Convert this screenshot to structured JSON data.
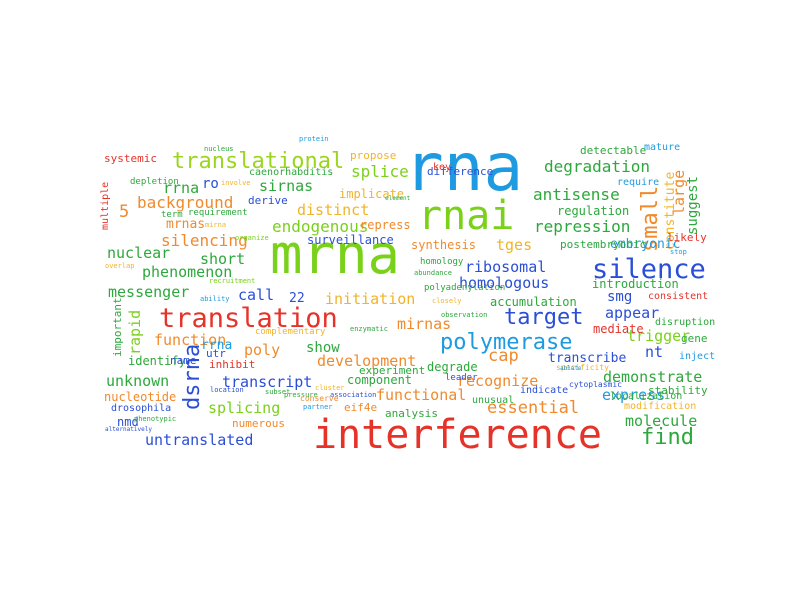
{
  "words": [
    {
      "text": "rna",
      "color": "#1e9be0"
    },
    {
      "text": "mrna",
      "color": "#7ad11a"
    },
    {
      "text": "interference",
      "color": "#e5332a"
    },
    {
      "text": "rnai",
      "color": "#7ad11a"
    },
    {
      "text": "translation",
      "color": "#e5332a"
    },
    {
      "text": "silence",
      "color": "#2a4fd6"
    },
    {
      "text": "translational",
      "color": "#9bd61e"
    },
    {
      "text": "polymerase",
      "color": "#1e9be0"
    },
    {
      "text": "target",
      "color": "#2a4fd6"
    },
    {
      "text": "dsrna",
      "color": "#2a4fd6"
    },
    {
      "text": "small",
      "color": "#f08a2c"
    },
    {
      "text": "find",
      "color": "#2da83c"
    },
    {
      "text": "essential",
      "color": "#f08a2c"
    },
    {
      "text": "degradation",
      "color": "#2da83c"
    },
    {
      "text": "antisense",
      "color": "#2da83c"
    },
    {
      "text": "repression",
      "color": "#2da83c"
    },
    {
      "text": "endogenous",
      "color": "#7ad11a"
    },
    {
      "text": "background",
      "color": "#f08a2c"
    },
    {
      "text": "silencing",
      "color": "#f08a2c"
    },
    {
      "text": "distinct",
      "color": "#f0b429"
    },
    {
      "text": "cap",
      "color": "#f08a2c"
    },
    {
      "text": "splice",
      "color": "#7ad11a"
    },
    {
      "text": "rrna",
      "color": "#2da83c"
    },
    {
      "text": "sirnas",
      "color": "#2da83c"
    },
    {
      "text": "phenomenon",
      "color": "#2da83c"
    },
    {
      "text": "nuclear",
      "color": "#2da83c"
    },
    {
      "text": "short",
      "color": "#2da83c"
    },
    {
      "text": "messenger",
      "color": "#2da83c"
    },
    {
      "text": "ribosomal",
      "color": "#2a4fd6"
    },
    {
      "text": "homologous",
      "color": "#2a4fd6"
    },
    {
      "text": "initiation",
      "color": "#f0b429"
    },
    {
      "text": "function",
      "color": "#f08a2c"
    },
    {
      "text": "development",
      "color": "#f08a2c"
    },
    {
      "text": "recognize",
      "color": "#f08a2c"
    },
    {
      "text": "splicing",
      "color": "#7ad11a"
    },
    {
      "text": "transcript",
      "color": "#2a4fd6"
    },
    {
      "text": "untranslated",
      "color": "#2a4fd6"
    },
    {
      "text": "functional",
      "color": "#f08a2c"
    },
    {
      "text": "demonstrate",
      "color": "#2da83c"
    },
    {
      "text": "express",
      "color": "#1e9be0"
    },
    {
      "text": "molecule",
      "color": "#2da83c"
    },
    {
      "text": "trigger",
      "color": "#7ad11a"
    },
    {
      "text": "appear",
      "color": "#2a4fd6"
    },
    {
      "text": "large",
      "color": "#f08a2c"
    },
    {
      "text": "constitute",
      "color": "#f0b429"
    },
    {
      "text": "suggest",
      "color": "#2da83c"
    },
    {
      "text": "embryonic",
      "color": "#1e9be0"
    },
    {
      "text": "mirnas",
      "color": "#f08a2c"
    },
    {
      "text": "mrnas",
      "color": "#f08a2c"
    },
    {
      "text": "tges",
      "color": "#f0b429"
    },
    {
      "text": "poly",
      "color": "#f08a2c"
    },
    {
      "text": "call",
      "color": "#2a4fd6"
    },
    {
      "text": "show",
      "color": "#2da83c"
    },
    {
      "text": "unknown",
      "color": "#2da83c"
    },
    {
      "text": "rapid",
      "color": "#7ad11a"
    },
    {
      "text": "rrna",
      "color": "#1e9be0"
    },
    {
      "text": "ro",
      "color": "#2a4fd6"
    },
    {
      "text": "5",
      "color": "#f08a2c"
    },
    {
      "text": "22",
      "color": "#2a4fd6"
    },
    {
      "text": "nt",
      "color": "#2a4fd6"
    },
    {
      "text": "smg",
      "color": "#2a4fd6"
    },
    {
      "text": "transcribe",
      "color": "#2a4fd6"
    },
    {
      "text": "regulation",
      "color": "#2da83c"
    },
    {
      "text": "accumulation",
      "color": "#2da83c"
    },
    {
      "text": "introduction",
      "color": "#2da83c"
    },
    {
      "text": "synthesis",
      "color": "#f08a2c"
    },
    {
      "text": "surveillance",
      "color": "#2a4fd6"
    },
    {
      "text": "repress",
      "color": "#f08a2c"
    },
    {
      "text": "implicate",
      "color": "#f0b429"
    },
    {
      "text": "component",
      "color": "#2da83c"
    },
    {
      "text": "experiment",
      "color": "#2da83c"
    },
    {
      "text": "degrade",
      "color": "#2da83c"
    },
    {
      "text": "mediate",
      "color": "#e5332a"
    },
    {
      "text": "identify",
      "color": "#2da83c"
    },
    {
      "text": "nucleotide",
      "color": "#f08a2c"
    },
    {
      "text": "nmd",
      "color": "#2a4fd6"
    },
    {
      "text": "numerous",
      "color": "#f08a2c"
    },
    {
      "text": "important",
      "color": "#2da83c"
    },
    {
      "text": "inhibit",
      "color": "#e5332a"
    },
    {
      "text": "utr",
      "color": "#2a4fd6"
    },
    {
      "text": "name",
      "color": "#2a4fd6"
    },
    {
      "text": "eif4e",
      "color": "#f08a2c"
    },
    {
      "text": "analysis",
      "color": "#2da83c"
    },
    {
      "text": "stability",
      "color": "#2da83c"
    },
    {
      "text": "gene",
      "color": "#2da83c"
    },
    {
      "text": "inject",
      "color": "#1e9be0"
    },
    {
      "text": "likely",
      "color": "#e5332a"
    },
    {
      "text": "systemic",
      "color": "#e5332a"
    },
    {
      "text": "propose",
      "color": "#f0b429"
    },
    {
      "text": "detectable",
      "color": "#2da83c"
    },
    {
      "text": "mature",
      "color": "#1e9be0"
    },
    {
      "text": "difference",
      "color": "#2a4fd6"
    },
    {
      "text": "caenorhabditis",
      "color": "#2da83c"
    },
    {
      "text": "postembryonic",
      "color": "#2da83c"
    },
    {
      "text": "consistent",
      "color": "#e5332a"
    },
    {
      "text": "disruption",
      "color": "#2da83c"
    },
    {
      "text": "localization",
      "color": "#2da83c"
    },
    {
      "text": "drosophila",
      "color": "#2a4fd6"
    },
    {
      "text": "modification",
      "color": "#f0b429"
    },
    {
      "text": "unusual",
      "color": "#2da83c"
    },
    {
      "text": "indicate",
      "color": "#2a4fd6"
    },
    {
      "text": "key",
      "color": "#e5332a"
    },
    {
      "text": "require",
      "color": "#1e9be0"
    },
    {
      "text": "depletion",
      "color": "#2da83c"
    },
    {
      "text": "derive",
      "color": "#2a4fd6"
    },
    {
      "text": "requirement",
      "color": "#2da83c"
    },
    {
      "text": "multiple",
      "color": "#e5332a"
    },
    {
      "text": "complementary",
      "color": "#f0b429"
    },
    {
      "text": "homology",
      "color": "#2da83c"
    },
    {
      "text": "polyadenylation",
      "color": "#2da83c"
    },
    {
      "text": "leader",
      "color": "#2a4fd6"
    },
    {
      "text": "cytoplasmic",
      "color": "#2a4fd6"
    },
    {
      "text": "specificity",
      "color": "#f0b429"
    },
    {
      "text": "nucleus",
      "color": "#2da83c"
    },
    {
      "text": "protein",
      "color": "#1e9be0"
    },
    {
      "text": "involve",
      "color": "#f0b429"
    },
    {
      "text": "recruitment",
      "color": "#7ad11a"
    },
    {
      "text": "overlap",
      "color": "#f0b429"
    },
    {
      "text": "ability",
      "color": "#1e9be0"
    },
    {
      "text": "closely",
      "color": "#f0b429"
    },
    {
      "text": "enzymatic",
      "color": "#2da83c"
    },
    {
      "text": "observation",
      "color": "#2da83c"
    },
    {
      "text": "location",
      "color": "#2a4fd6"
    },
    {
      "text": "cluster",
      "color": "#f0b429"
    },
    {
      "text": "partner",
      "color": "#1e9be0"
    },
    {
      "text": "phenotypic",
      "color": "#2da83c"
    },
    {
      "text": "alternatively",
      "color": "#2a4fd6"
    },
    {
      "text": "stop",
      "color": "#1e9be0"
    },
    {
      "text": "abundance",
      "color": "#2da83c"
    },
    {
      "text": "term",
      "color": "#2da83c"
    },
    {
      "text": "mirna",
      "color": "#f0b429"
    },
    {
      "text": "organize",
      "color": "#7ad11a"
    },
    {
      "text": "association",
      "color": "#2a4fd6"
    },
    {
      "text": "pressure",
      "color": "#2da83c"
    },
    {
      "text": "subset",
      "color": "#2da83c"
    },
    {
      "text": "conserve",
      "color": "#f08a2c"
    },
    {
      "text": "element",
      "color": "#2da83c"
    },
    {
      "text": "ablate",
      "color": "#1e9be0"
    }
  ]
}
